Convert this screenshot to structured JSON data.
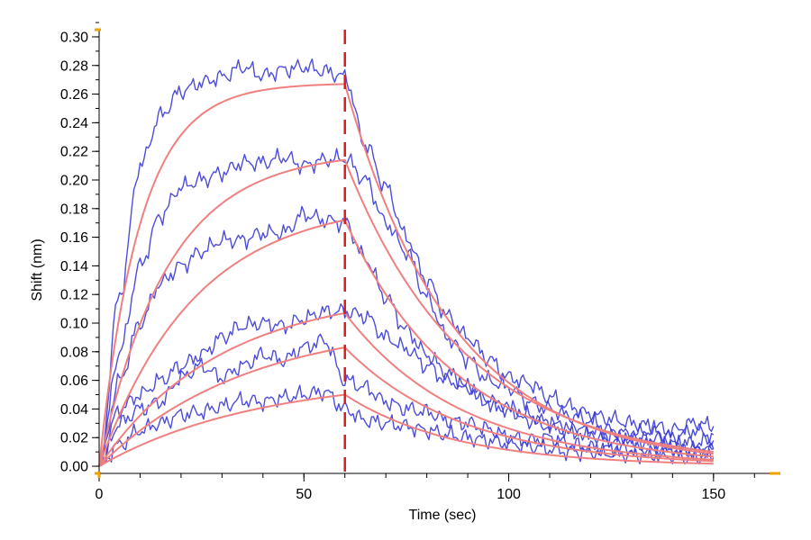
{
  "chart_data": {
    "type": "line",
    "title": "",
    "xlabel": "Time (sec)",
    "ylabel": "Shift (nm)",
    "xlim": [
      0,
      165
    ],
    "ylim": [
      -0.005,
      0.305
    ],
    "grid": false,
    "legend": "none",
    "x_ticks": [
      0,
      50,
      100,
      150
    ],
    "x_tick_labels": [
      "0",
      "50",
      "100",
      "150"
    ],
    "x_minor_step": 10,
    "y_ticks": [
      0.0,
      0.02,
      0.04,
      0.06,
      0.08,
      0.1,
      0.12,
      0.14,
      0.16,
      0.18,
      0.2,
      0.22,
      0.24,
      0.26,
      0.28,
      0.3
    ],
    "y_tick_labels": [
      "0.00",
      "0.02",
      "0.04",
      "0.06",
      "0.08",
      "0.10",
      "0.12",
      "0.14",
      "0.16",
      "0.18",
      "0.20",
      "0.22",
      "0.24",
      "0.26",
      "0.28",
      "0.30"
    ],
    "y_minor_step": 0.01,
    "dissociation_start": 60,
    "x_end": 150,
    "colors": {
      "data": "#3a3ad8",
      "fit": "#f08080",
      "divider": "#dd1c1c",
      "axis": "#000000",
      "axis_marker": "#f0a000"
    },
    "series": [
      {
        "type": "fit",
        "k_on": 0.1,
        "plateau": 0.268,
        "assoc_end": 0.267,
        "k_off": 0.038
      },
      {
        "type": "fit",
        "k_on": 0.06,
        "plateau": 0.22,
        "assoc_end": 0.214,
        "k_off": 0.034
      },
      {
        "type": "fit",
        "k_on": 0.043,
        "plateau": 0.185,
        "assoc_end": 0.172,
        "k_off": 0.036
      },
      {
        "type": "fit",
        "k_on": 0.034,
        "plateau": 0.122,
        "assoc_end": 0.107,
        "k_off": 0.035
      },
      {
        "type": "fit",
        "k_on": 0.028,
        "plateau": 0.101,
        "assoc_end": 0.083,
        "k_off": 0.035
      },
      {
        "type": "fit",
        "k_on": 0.026,
        "plateau": 0.06,
        "assoc_end": 0.05,
        "k_off": 0.037
      },
      {
        "type": "data",
        "x": [
          0,
          5,
          10,
          15,
          20,
          25,
          30,
          35,
          40,
          45,
          50,
          55,
          60,
          65,
          70,
          75,
          80,
          85,
          90,
          95,
          100,
          105,
          110,
          115,
          120,
          125,
          130,
          135,
          140,
          145,
          150
        ],
        "y": [
          0.0,
          0.12,
          0.21,
          0.245,
          0.262,
          0.268,
          0.272,
          0.279,
          0.273,
          0.277,
          0.279,
          0.276,
          0.272,
          0.225,
          0.195,
          0.16,
          0.13,
          0.105,
          0.09,
          0.075,
          0.062,
          0.058,
          0.048,
          0.042,
          0.036,
          0.033,
          0.03,
          0.028,
          0.025,
          0.03,
          0.028
        ]
      },
      {
        "type": "data",
        "x": [
          0,
          5,
          10,
          15,
          20,
          25,
          30,
          35,
          40,
          45,
          50,
          55,
          60,
          65,
          70,
          75,
          80,
          85,
          90,
          95,
          100,
          105,
          110,
          115,
          120,
          125,
          130,
          135,
          140,
          145,
          150
        ],
        "y": [
          0.0,
          0.08,
          0.14,
          0.175,
          0.195,
          0.2,
          0.205,
          0.212,
          0.212,
          0.216,
          0.21,
          0.214,
          0.215,
          0.2,
          0.17,
          0.15,
          0.118,
          0.09,
          0.075,
          0.06,
          0.055,
          0.045,
          0.04,
          0.035,
          0.032,
          0.025,
          0.022,
          0.025,
          0.02,
          0.025,
          0.022
        ]
      },
      {
        "type": "data",
        "x": [
          0,
          5,
          10,
          15,
          20,
          25,
          30,
          35,
          40,
          45,
          50,
          55,
          60,
          65,
          70,
          75,
          80,
          85,
          90,
          95,
          100,
          105,
          110,
          115,
          120,
          125,
          130,
          135,
          140,
          145,
          150
        ],
        "y": [
          0.0,
          0.06,
          0.1,
          0.128,
          0.14,
          0.15,
          0.158,
          0.158,
          0.163,
          0.163,
          0.176,
          0.172,
          0.17,
          0.145,
          0.118,
          0.095,
          0.078,
          0.065,
          0.055,
          0.045,
          0.04,
          0.035,
          0.03,
          0.025,
          0.022,
          0.018,
          0.02,
          0.015,
          0.015,
          0.012,
          0.012
        ]
      },
      {
        "type": "data",
        "x": [
          0,
          5,
          10,
          15,
          20,
          25,
          30,
          35,
          40,
          45,
          50,
          55,
          60,
          65,
          70,
          75,
          80,
          85,
          90,
          95,
          100,
          105,
          110,
          115,
          120,
          125,
          130,
          135,
          140,
          145,
          150
        ],
        "y": [
          0.0,
          0.04,
          0.05,
          0.06,
          0.07,
          0.078,
          0.09,
          0.098,
          0.1,
          0.098,
          0.103,
          0.108,
          0.108,
          0.105,
          0.09,
          0.082,
          0.07,
          0.06,
          0.055,
          0.045,
          0.04,
          0.032,
          0.028,
          0.025,
          0.025,
          0.02,
          0.018,
          0.02,
          0.015,
          0.016,
          0.018
        ]
      },
      {
        "type": "data",
        "x": [
          0,
          5,
          10,
          15,
          20,
          25,
          30,
          35,
          40,
          45,
          50,
          55,
          60,
          65,
          70,
          75,
          80,
          85,
          90,
          95,
          100,
          105,
          110,
          115,
          120,
          125,
          130,
          135,
          140,
          145,
          150
        ],
        "y": [
          0.0,
          0.03,
          0.04,
          0.045,
          0.062,
          0.07,
          0.062,
          0.07,
          0.078,
          0.074,
          0.083,
          0.088,
          0.06,
          0.055,
          0.045,
          0.04,
          0.038,
          0.032,
          0.03,
          0.026,
          0.02,
          0.018,
          0.02,
          0.015,
          0.013,
          0.012,
          0.012,
          0.01,
          0.012,
          0.01,
          0.012
        ]
      },
      {
        "type": "data",
        "x": [
          0,
          5,
          10,
          15,
          20,
          25,
          30,
          35,
          40,
          45,
          50,
          55,
          60,
          65,
          70,
          75,
          80,
          85,
          90,
          95,
          100,
          105,
          110,
          115,
          120,
          125,
          130,
          135,
          140,
          145,
          150
        ],
        "y": [
          0.0,
          0.015,
          0.025,
          0.03,
          0.036,
          0.038,
          0.042,
          0.046,
          0.045,
          0.048,
          0.05,
          0.052,
          0.04,
          0.032,
          0.03,
          0.028,
          0.025,
          0.022,
          0.02,
          0.018,
          0.016,
          0.014,
          0.012,
          0.01,
          0.01,
          0.009,
          0.008,
          0.008,
          0.007,
          0.006,
          0.006
        ]
      }
    ]
  }
}
